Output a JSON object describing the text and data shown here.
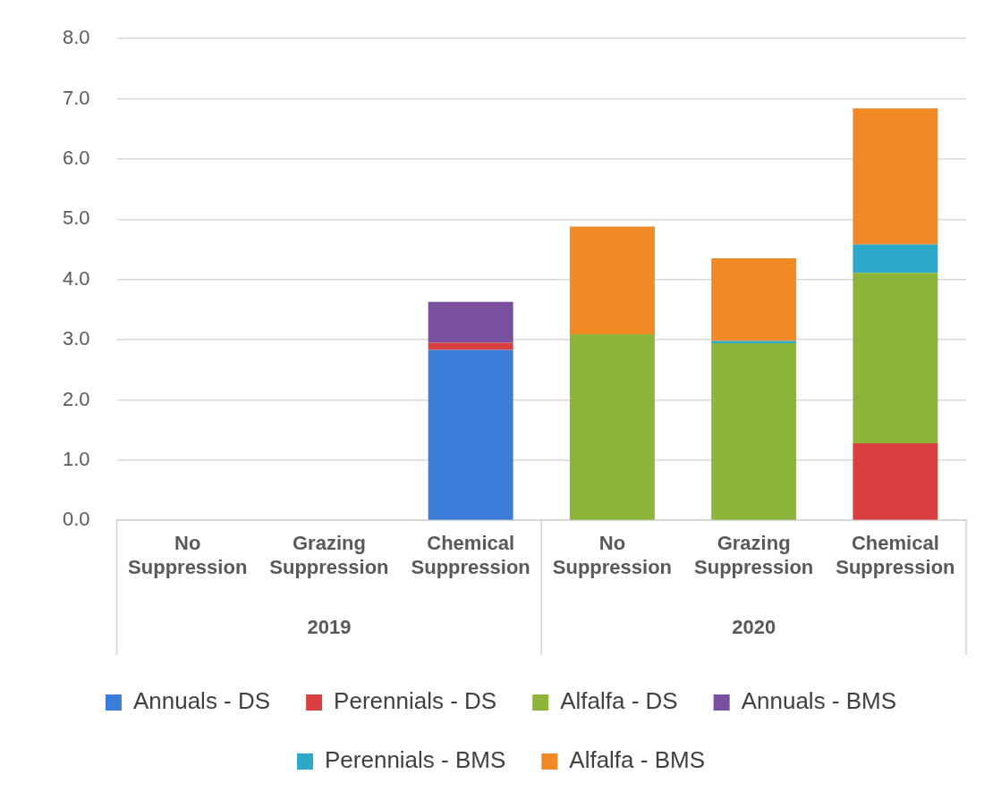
{
  "chart_data": {
    "type": "bar",
    "stacked": true,
    "categories": [
      "No Suppression",
      "Grazing Suppression",
      "Chemical Suppression",
      "No Suppression",
      "Grazing Suppression",
      "Chemical Suppression"
    ],
    "annotations": [
      "2019",
      "2020"
    ],
    "series": [
      {
        "name": "Annuals - DS",
        "color": "#3b7dd8",
        "values": [
          null,
          null,
          2.83,
          null,
          null,
          null
        ]
      },
      {
        "name": "Perennials - DS",
        "color": "#d94040",
        "values": [
          null,
          null,
          0.12,
          null,
          null,
          1.28
        ]
      },
      {
        "name": "Alfalfa - DS",
        "color": "#8db53c",
        "values": [
          null,
          null,
          null,
          3.09,
          2.94,
          2.83
        ]
      },
      {
        "name": "Annuals - BMS",
        "color": "#7a4fa0",
        "values": [
          null,
          null,
          0.68,
          null,
          null,
          null
        ]
      },
      {
        "name": "Perennials - BMS",
        "color": "#2ea8c8",
        "values": [
          null,
          null,
          null,
          null,
          0.04,
          0.47
        ]
      },
      {
        "name": "Alfalfa - BMS",
        "color": "#f08a24",
        "values": [
          null,
          null,
          null,
          1.79,
          1.37,
          2.26
        ]
      }
    ],
    "ylim": [
      0,
      8
    ],
    "yticks": [
      {
        "value": 0,
        "label": "0.0"
      },
      {
        "value": 1,
        "label": "1.0"
      },
      {
        "value": 2,
        "label": "2.0"
      },
      {
        "value": 3,
        "label": "3.0"
      },
      {
        "value": 4,
        "label": "4.0"
      },
      {
        "value": 5,
        "label": "5.0"
      },
      {
        "value": 6,
        "label": "6.0"
      },
      {
        "value": 7,
        "label": "7.0"
      },
      {
        "value": 8,
        "label": "8.0"
      }
    ],
    "grid": "y",
    "legend": "bottom"
  }
}
